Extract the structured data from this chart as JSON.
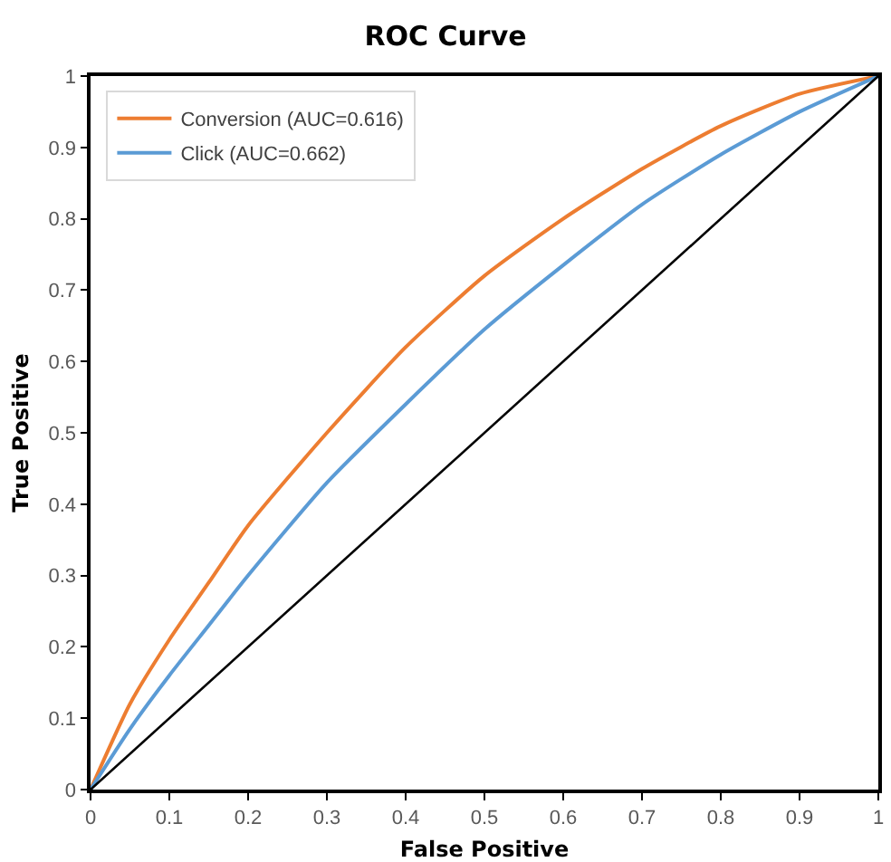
{
  "chart_data": {
    "type": "line",
    "title": "ROC Curve",
    "xlabel": "False Positive",
    "ylabel": "True Positive",
    "x": [
      0,
      0.05,
      0.1,
      0.15,
      0.2,
      0.3,
      0.4,
      0.5,
      0.6,
      0.7,
      0.8,
      0.9,
      1
    ],
    "series": [
      {
        "name": "Conversion (AUC=0.616)",
        "color": "#ed7d31",
        "values": [
          0,
          0.12,
          0.21,
          0.29,
          0.37,
          0.5,
          0.62,
          0.72,
          0.8,
          0.87,
          0.93,
          0.975,
          1
        ]
      },
      {
        "name": "Click (AUC=0.662)",
        "color": "#5b9bd5",
        "values": [
          0,
          0.085,
          0.16,
          0.23,
          0.3,
          0.43,
          0.54,
          0.645,
          0.735,
          0.82,
          0.89,
          0.95,
          1
        ]
      },
      {
        "color": "#000000",
        "x": [
          0,
          1
        ],
        "values": [
          0,
          1
        ]
      }
    ],
    "xlim": [
      0,
      1
    ],
    "ylim": [
      0,
      1
    ],
    "xticks": [
      0,
      0.1,
      0.2,
      0.3,
      0.4,
      0.5,
      0.6,
      0.7,
      0.8,
      0.9,
      1
    ],
    "yticks": [
      0,
      0.1,
      0.2,
      0.3,
      0.4,
      0.5,
      0.6,
      0.7,
      0.8,
      0.9,
      1
    ],
    "grid": false,
    "legend": "top left",
    "marker": "none",
    "line_style": "solid"
  }
}
